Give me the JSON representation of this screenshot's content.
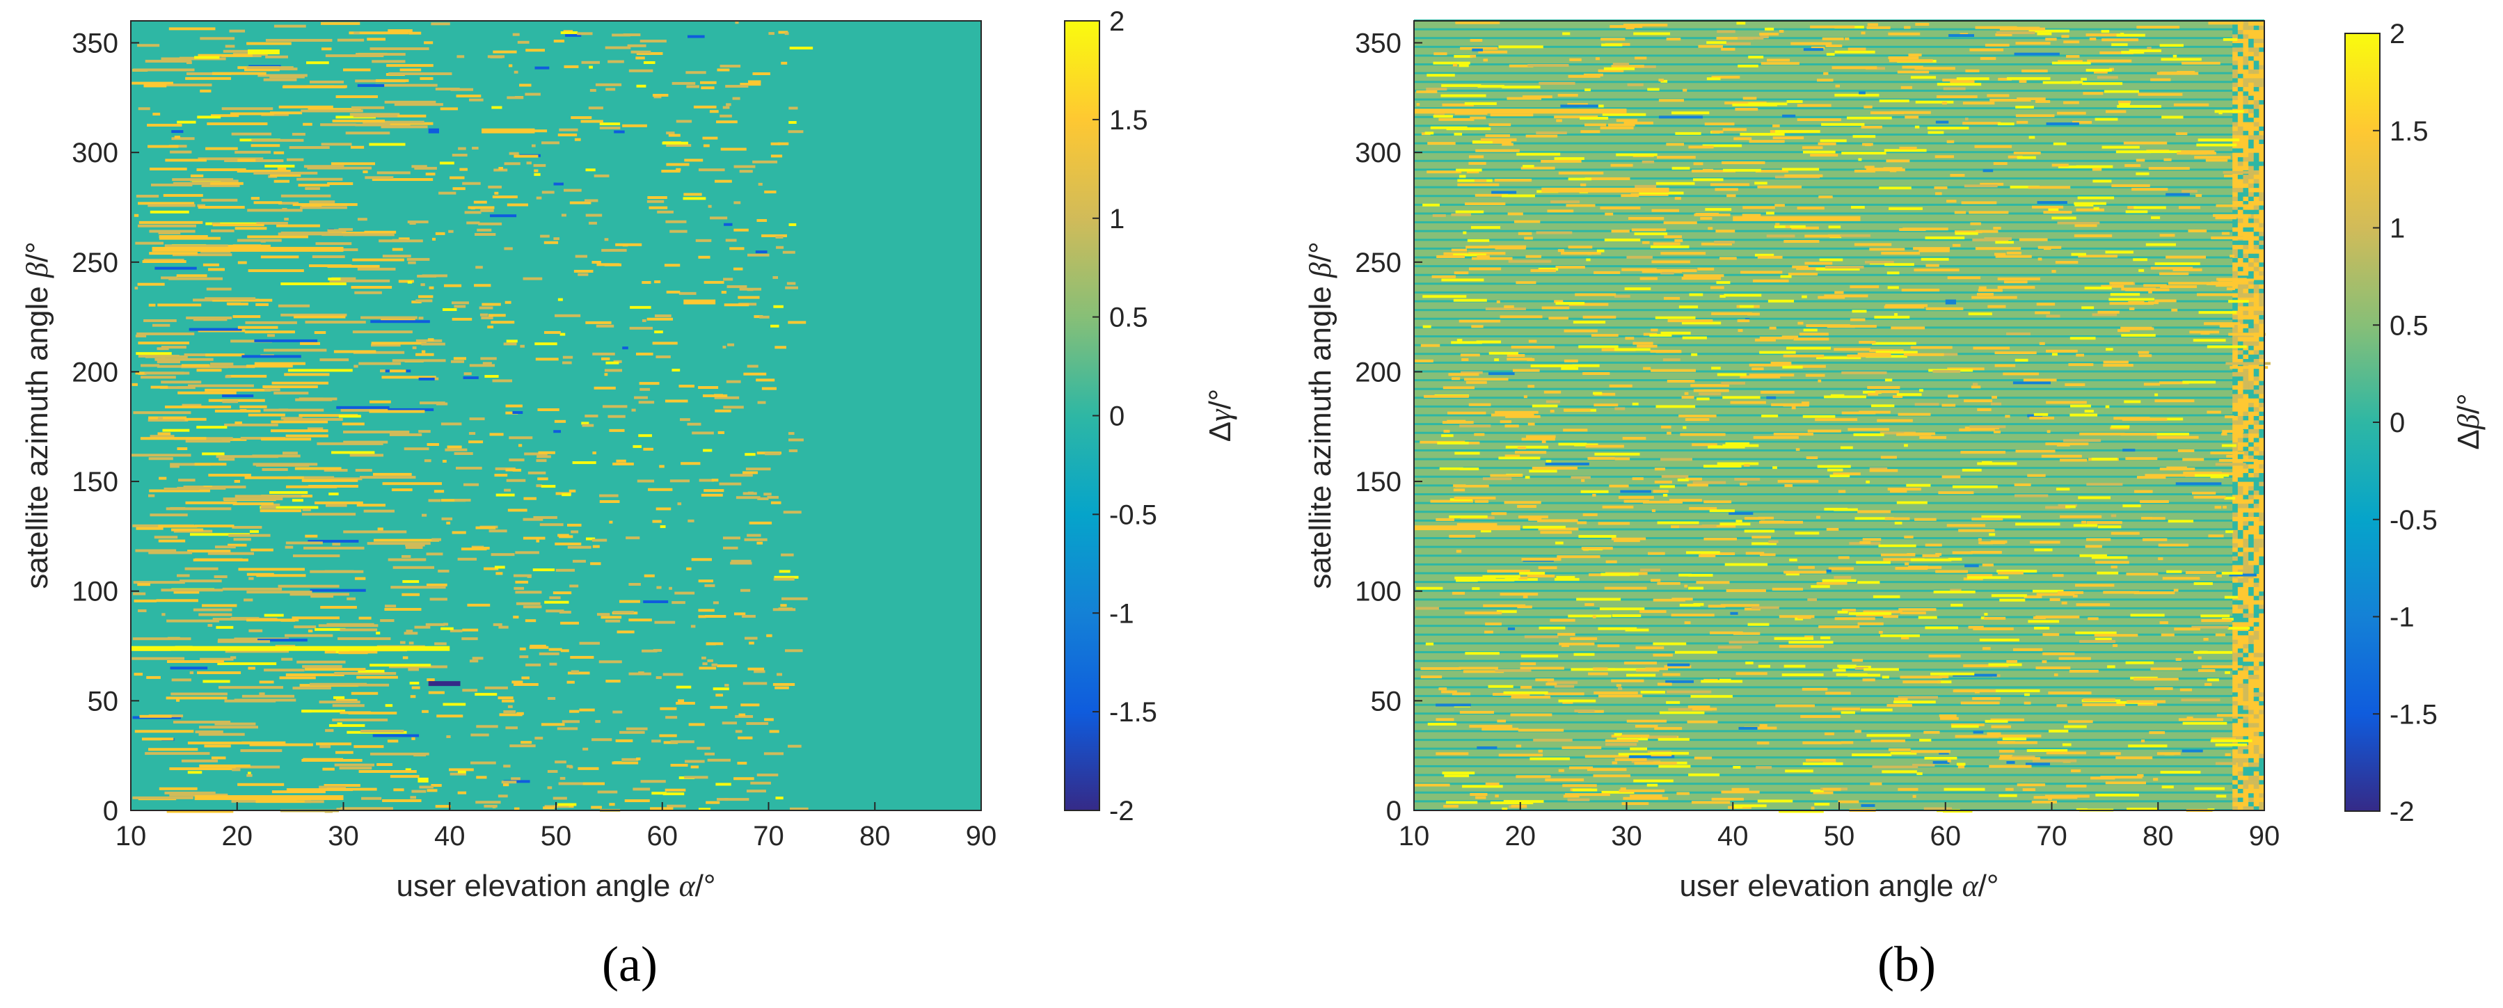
{
  "chart_data": [
    {
      "type": "heatmap",
      "panel_label": "(a)",
      "xlabel": "user elevation angle α/°",
      "xlabel_parts": [
        "user elevation angle ",
        "α",
        "/°"
      ],
      "ylabel": "satellite azimuth angle β/°",
      "ylabel_parts": [
        "satellite azimuth angle ",
        "β",
        "/°"
      ],
      "xlim": [
        10,
        90
      ],
      "ylim": [
        0,
        360
      ],
      "xticks": [
        10,
        20,
        30,
        40,
        50,
        60,
        70,
        80,
        90
      ],
      "yticks": [
        0,
        50,
        100,
        150,
        200,
        250,
        300,
        350
      ],
      "colorbar": {
        "label": "Δγ/°",
        "label_parts": [
          "Δ",
          "γ",
          "/°"
        ],
        "range": [
          -2,
          2
        ],
        "ticks": [
          -2,
          -1.5,
          -1,
          -0.5,
          0,
          0.5,
          1,
          1.5,
          2
        ],
        "colormap": "parula"
      },
      "background_value": 0,
      "deviation_extent_x": 72,
      "features": [
        {
          "x": [
            10,
            40
          ],
          "y": 74,
          "value": 1.8
        },
        {
          "x": [
            16,
            30
          ],
          "y": 6,
          "value": 1.6
        },
        {
          "x": [
            37,
            38
          ],
          "y": 14,
          "value": 2
        },
        {
          "x": [
            62,
            65
          ],
          "y": 232,
          "value": 1.7
        },
        {
          "x": [
            43,
            48
          ],
          "y": 310,
          "value": 1.5
        },
        {
          "x": [
            38,
            41
          ],
          "y": 58,
          "value": -1.8
        },
        {
          "x": [
            38,
            39
          ],
          "y": 310,
          "value": -1.7
        },
        {
          "x": [
            21,
            24
          ],
          "y": 346,
          "value": 1.8
        },
        {
          "x": [
            12,
            30
          ],
          "y": 256,
          "value": 1.4
        }
      ]
    },
    {
      "type": "heatmap",
      "panel_label": "(b)",
      "xlabel": "user elevation angle α/°",
      "xlabel_parts": [
        "user elevation angle ",
        "α",
        "/°"
      ],
      "ylabel": "satellite azimuth angle β/°",
      "ylabel_parts": [
        "satellite azimuth angle ",
        "β",
        "/°"
      ],
      "xlim": [
        10,
        90
      ],
      "ylim": [
        0,
        360
      ],
      "xticks": [
        10,
        20,
        30,
        40,
        50,
        60,
        70,
        80,
        90
      ],
      "yticks": [
        0,
        50,
        100,
        150,
        200,
        250,
        300,
        350
      ],
      "colorbar": {
        "label": "Δβ/°",
        "label_parts": [
          "Δ",
          "β",
          "/°"
        ],
        "range": [
          -2,
          2
        ],
        "ticks": [
          -2,
          -1.5,
          -1,
          -0.5,
          0,
          0.5,
          1,
          1.5,
          2
        ],
        "colormap": "parula"
      },
      "background_value": 0.6,
      "stripe_value": 0,
      "stripe_spacing_deg": 4,
      "deviation_extent_x": 90,
      "edge_band_x": [
        87,
        90
      ],
      "features": [
        {
          "x": [
            10,
            20
          ],
          "y": 129,
          "value": 1.6
        },
        {
          "x": [
            22,
            34
          ],
          "y": 283,
          "value": 1.5
        },
        {
          "x": [
            60,
            61
          ],
          "y": 232,
          "value": -1.2
        },
        {
          "x": [
            10,
            30
          ],
          "y": 319,
          "value": 1.4
        },
        {
          "x": [
            40,
            52
          ],
          "y": 270,
          "value": 1.3
        }
      ]
    }
  ],
  "colors": {
    "parula": [
      "#352a87",
      "#0f5cdd",
      "#1481d6",
      "#06a4ca",
      "#2eb7a4",
      "#87bf77",
      "#d1bb59",
      "#fec832",
      "#f9fb0e"
    ]
  }
}
